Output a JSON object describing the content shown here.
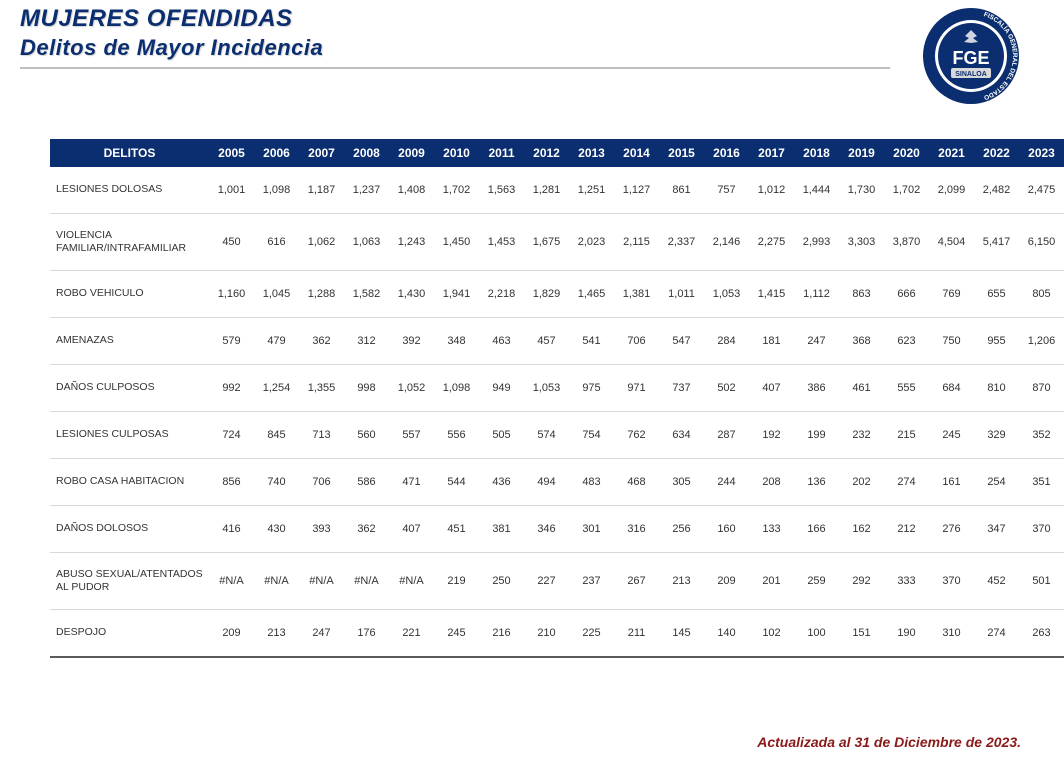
{
  "header": {
    "title": "MUJERES OFENDIDAS",
    "subtitle": "Delitos de Mayor Incidencia"
  },
  "logo": {
    "text_top": "FGE",
    "text_mid": "SINALOA",
    "ring_text": "FISCALÍA GENERAL DEL ESTADO",
    "ring_color": "#0a2e6f",
    "text_color": "#ffffff",
    "bg_color": "#ffffff"
  },
  "footer": {
    "note": "Actualizada al 31 de Diciembre de 2023."
  },
  "table": {
    "type": "table",
    "header_bg": "#0a2e6f",
    "header_fg": "#ffffff",
    "row_border": "#d9d9d9",
    "bottom_border": "#5a5a5a",
    "cell_font_size": 11,
    "header_font_size": 12,
    "columns": [
      "DELITOS",
      "2005",
      "2006",
      "2007",
      "2008",
      "2009",
      "2010",
      "2011",
      "2012",
      "2013",
      "2014",
      "2015",
      "2016",
      "2017",
      "2018",
      "2019",
      "2020",
      "2021",
      "2022",
      "2023"
    ],
    "rows": [
      {
        "name": "LESIONES DOLOSAS",
        "values": [
          "1,001",
          "1,098",
          "1,187",
          "1,237",
          "1,408",
          "1,702",
          "1,563",
          "1,281",
          "1,251",
          "1,127",
          "861",
          "757",
          "1,012",
          "1,444",
          "1,730",
          "1,702",
          "2,099",
          "2,482",
          "2,475"
        ]
      },
      {
        "name": "VIOLENCIA FAMILIAR/INTRAFAMILIAR",
        "values": [
          "450",
          "616",
          "1,062",
          "1,063",
          "1,243",
          "1,450",
          "1,453",
          "1,675",
          "2,023",
          "2,115",
          "2,337",
          "2,146",
          "2,275",
          "2,993",
          "3,303",
          "3,870",
          "4,504",
          "5,417",
          "6,150"
        ],
        "tall": true
      },
      {
        "name": "ROBO VEHICULO",
        "values": [
          "1,160",
          "1,045",
          "1,288",
          "1,582",
          "1,430",
          "1,941",
          "2,218",
          "1,829",
          "1,465",
          "1,381",
          "1,011",
          "1,053",
          "1,415",
          "1,112",
          "863",
          "666",
          "769",
          "655",
          "805"
        ]
      },
      {
        "name": "AMENAZAS",
        "values": [
          "579",
          "479",
          "362",
          "312",
          "392",
          "348",
          "463",
          "457",
          "541",
          "706",
          "547",
          "284",
          "181",
          "247",
          "368",
          "623",
          "750",
          "955",
          "1,206"
        ]
      },
      {
        "name": "DAÑOS CULPOSOS",
        "values": [
          "992",
          "1,254",
          "1,355",
          "998",
          "1,052",
          "1,098",
          "949",
          "1,053",
          "975",
          "971",
          "737",
          "502",
          "407",
          "386",
          "461",
          "555",
          "684",
          "810",
          "870"
        ]
      },
      {
        "name": "LESIONES CULPOSAS",
        "values": [
          "724",
          "845",
          "713",
          "560",
          "557",
          "556",
          "505",
          "574",
          "754",
          "762",
          "634",
          "287",
          "192",
          "199",
          "232",
          "215",
          "245",
          "329",
          "352"
        ]
      },
      {
        "name": "ROBO CASA HABITACION",
        "values": [
          "856",
          "740",
          "706",
          "586",
          "471",
          "544",
          "436",
          "494",
          "483",
          "468",
          "305",
          "244",
          "208",
          "136",
          "202",
          "274",
          "161",
          "254",
          "351"
        ]
      },
      {
        "name": "DAÑOS DOLOSOS",
        "values": [
          "416",
          "430",
          "393",
          "362",
          "407",
          "451",
          "381",
          "346",
          "301",
          "316",
          "256",
          "160",
          "133",
          "166",
          "162",
          "212",
          "276",
          "347",
          "370"
        ]
      },
      {
        "name": "ABUSO SEXUAL/ATENTADOS AL PUDOR",
        "values": [
          "#N/A",
          "#N/A",
          "#N/A",
          "#N/A",
          "#N/A",
          "219",
          "250",
          "227",
          "237",
          "267",
          "213",
          "209",
          "201",
          "259",
          "292",
          "333",
          "370",
          "452",
          "501"
        ],
        "tall": true
      },
      {
        "name": "DESPOJO",
        "values": [
          "209",
          "213",
          "247",
          "176",
          "221",
          "245",
          "216",
          "210",
          "225",
          "211",
          "145",
          "140",
          "102",
          "100",
          "151",
          "190",
          "310",
          "274",
          "263"
        ]
      }
    ]
  }
}
